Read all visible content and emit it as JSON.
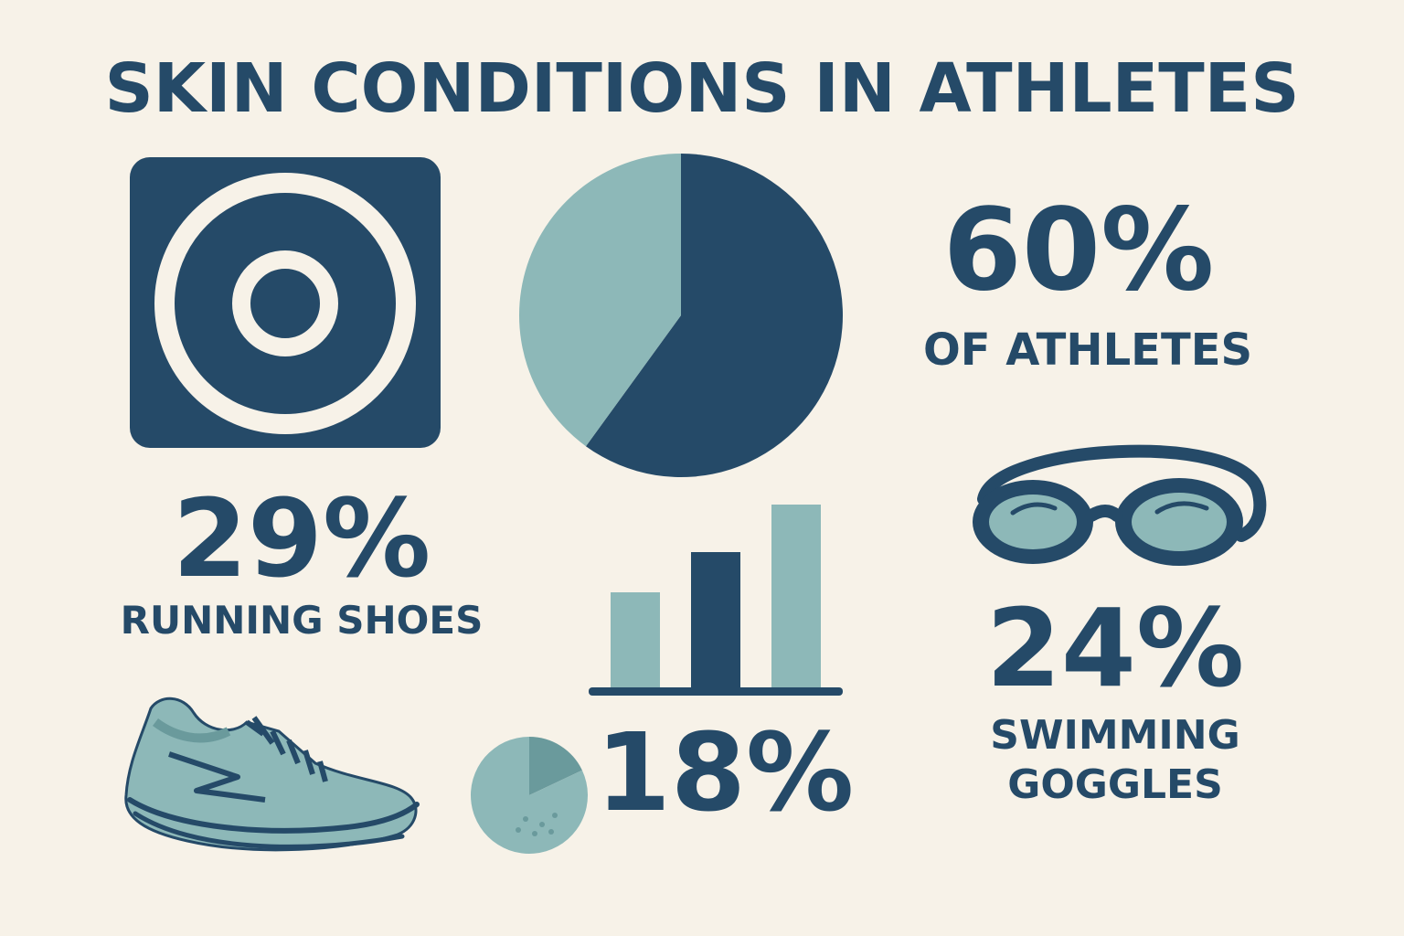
{
  "title": "SKIN CONDITIONS IN ATHLETES",
  "colors": {
    "dark": "#254a68",
    "light": "#8db8b8",
    "mid": "#6a9a9c",
    "background": "#f7f2e8"
  },
  "stats": {
    "athletes": {
      "value": "60%",
      "label": "OF ATHLETES"
    },
    "running_shoes": {
      "value": "29%",
      "label": "RUNNING SHOES"
    },
    "goggles": {
      "value": "24%",
      "label_line1": "SWIMMING",
      "label_line2": "GOGGLES"
    },
    "other": {
      "value": "18%"
    }
  },
  "icons": [
    "target-icon",
    "pie-chart-icon",
    "bar-chart-icon",
    "goggles-icon",
    "running-shoe-icon",
    "small-pie-icon"
  ],
  "chart_data": [
    {
      "type": "pie",
      "values": [
        60,
        40
      ]
    },
    {
      "type": "bar",
      "values": [
        0.52,
        0.74,
        1.0
      ]
    },
    {
      "type": "pie",
      "values": [
        18,
        82
      ]
    }
  ]
}
